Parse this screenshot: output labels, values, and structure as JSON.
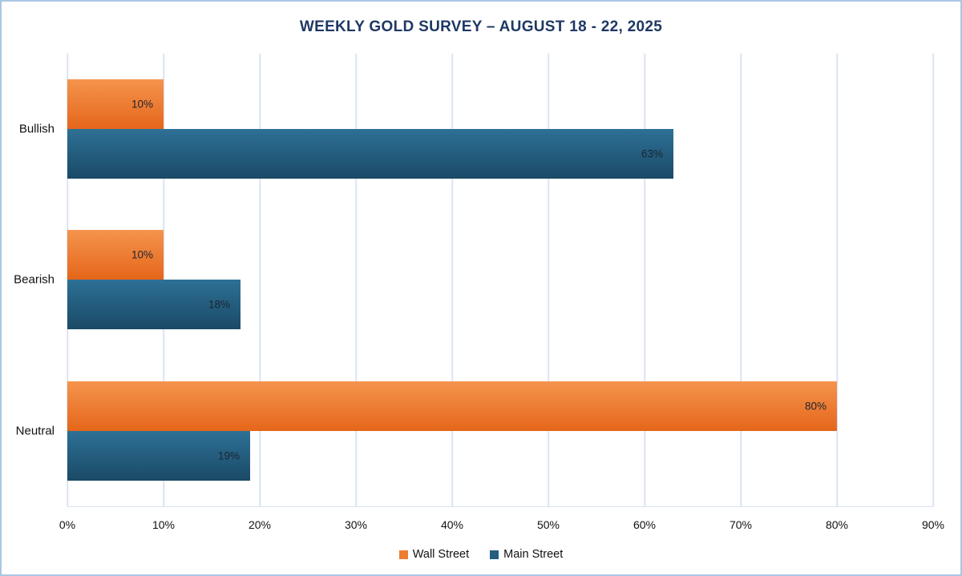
{
  "chart_data": {
    "type": "bar",
    "orientation": "horizontal",
    "title": "WEEKLY GOLD SURVEY – AUGUST 18  - 22, 2025",
    "categories": [
      "Bullish",
      "Bearish",
      "Neutral"
    ],
    "series": [
      {
        "name": "Wall Street",
        "color": "#ed7d31",
        "color_top": "#f5944e",
        "color_bottom": "#e5661a",
        "values": [
          10,
          10,
          80
        ]
      },
      {
        "name": "Main Street",
        "color": "#255e7e",
        "color_top": "#2e7096",
        "color_bottom": "#1a4a66",
        "values": [
          63,
          18,
          19
        ]
      }
    ],
    "xlabel": "",
    "ylabel": "",
    "xlim": [
      0,
      90
    ],
    "x_ticks": [
      "0%",
      "10%",
      "20%",
      "30%",
      "40%",
      "50%",
      "60%",
      "70%",
      "80%",
      "90%"
    ],
    "value_suffix": "%",
    "grid": true,
    "legend_position": "bottom",
    "colors": {
      "title_text": "#1f3864",
      "gridline": "#dbe4f3",
      "figure_border": "#a9c7e3",
      "label_text": "#111111"
    }
  }
}
